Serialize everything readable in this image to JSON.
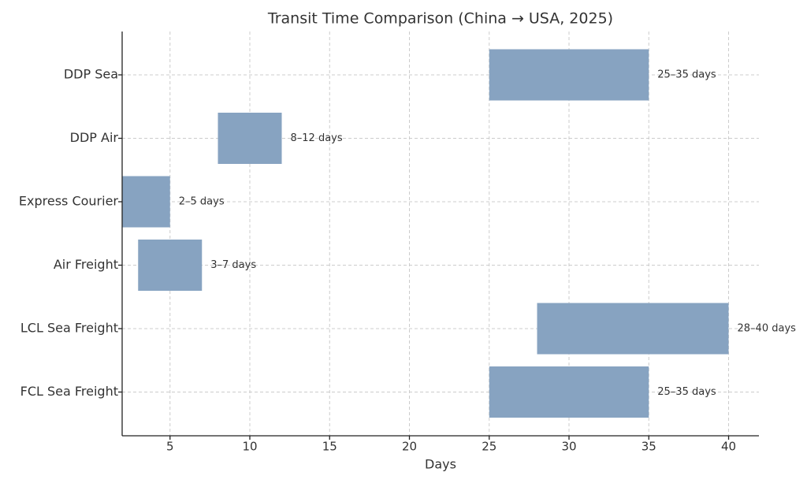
{
  "chart_data": {
    "type": "range-bar",
    "title": "Transit Time Comparison (China → USA, 2025)",
    "x_label": "Days",
    "categories": [
      "DDP Sea",
      "DDP Air",
      "Express Courier",
      "Air Freight",
      "LCL Sea Freight",
      "FCL Sea Freight"
    ],
    "low": [
      25,
      8,
      2,
      3,
      28,
      25
    ],
    "high": [
      35,
      12,
      5,
      7,
      40,
      35
    ],
    "value_labels": [
      "25–35 days",
      "8–12 days",
      "2–5 days",
      "3–7 days",
      "28–40 days",
      "25–35 days"
    ],
    "color": "#87a3c1",
    "xlim": [
      2,
      41.9
    ],
    "xticks": [
      5,
      10,
      15,
      20,
      25,
      30,
      35,
      40
    ],
    "grid": true
  }
}
